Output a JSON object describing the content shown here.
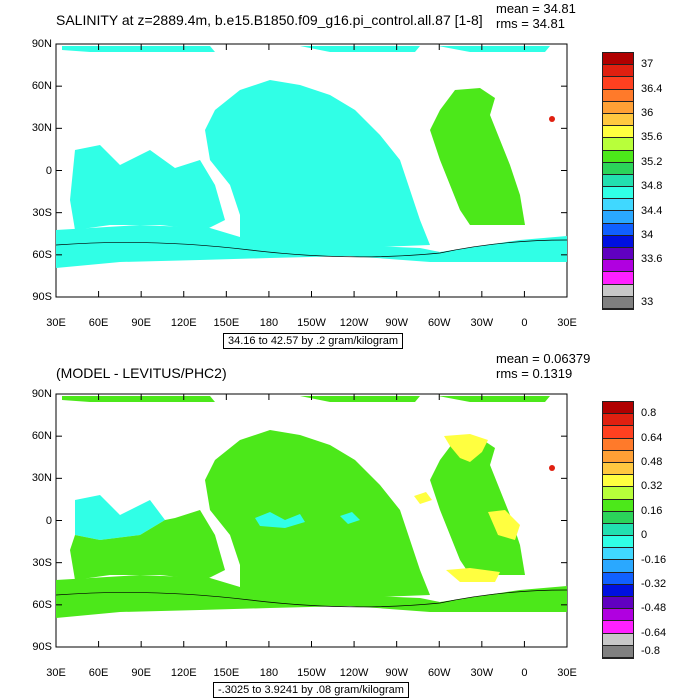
{
  "panel_top": {
    "title": "SALINITY at z=2889.4m, b.e15.B1850.f09_g16.pi_control.all.87 [1-8]",
    "mean": "mean = 34.81",
    "rms": "rms = 34.81",
    "range_text": "34.16 to 42.57 by .2 gram/kilogram",
    "colorbar_labels": [
      "37",
      "36.4",
      "36",
      "35.6",
      "35.2",
      "34.8",
      "34.4",
      "34",
      "33.6",
      "33"
    ],
    "colorbar_colors": [
      "#b00000",
      "#e02010",
      "#ff4020",
      "#ff7a2a",
      "#ffa035",
      "#ffc840",
      "#ffff40",
      "#b8ff3a",
      "#4ce81a",
      "#2bd45a",
      "#22e0b0",
      "#30ffe6",
      "#40d8ff",
      "#2aa8ff",
      "#1060ff",
      "#0010e0",
      "#6000c0",
      "#b000e0",
      "#ff20ff",
      "#c8c8c8",
      "#808080"
    ]
  },
  "panel_bottom": {
    "title": "(MODEL - LEVITUS/PHC2)",
    "mean": "mean = 0.06379",
    "rms": "rms = 0.1319",
    "range_text": "-.3025 to 3.9241 by .08 gram/kilogram",
    "colorbar_labels": [
      "0.8",
      "0.64",
      "0.48",
      "0.32",
      "0.16",
      "0",
      "-0.16",
      "-0.32",
      "-0.48",
      "-0.64",
      "-0.8"
    ],
    "colorbar_colors": [
      "#b00000",
      "#e02010",
      "#ff4020",
      "#ff7a2a",
      "#ffa035",
      "#ffc840",
      "#ffff40",
      "#b8ff3a",
      "#4ce81a",
      "#2bd45a",
      "#22e0b0",
      "#30ffe6",
      "#40d8ff",
      "#2aa8ff",
      "#1060ff",
      "#0010e0",
      "#6000c0",
      "#b000e0",
      "#ff20ff",
      "#c8c8c8",
      "#808080"
    ]
  },
  "axes": {
    "lat_labels": [
      "90N",
      "60N",
      "30N",
      "0",
      "30S",
      "60S",
      "90S"
    ],
    "lon_labels": [
      "30E",
      "60E",
      "90E",
      "120E",
      "150E",
      "180",
      "150W",
      "120W",
      "90W",
      "60W",
      "30W",
      "0",
      "30E"
    ]
  },
  "colors": {
    "cyan": "#30ffe6",
    "green": "#4ce81a",
    "yellow": "#ffff40",
    "red": "#e02010"
  }
}
